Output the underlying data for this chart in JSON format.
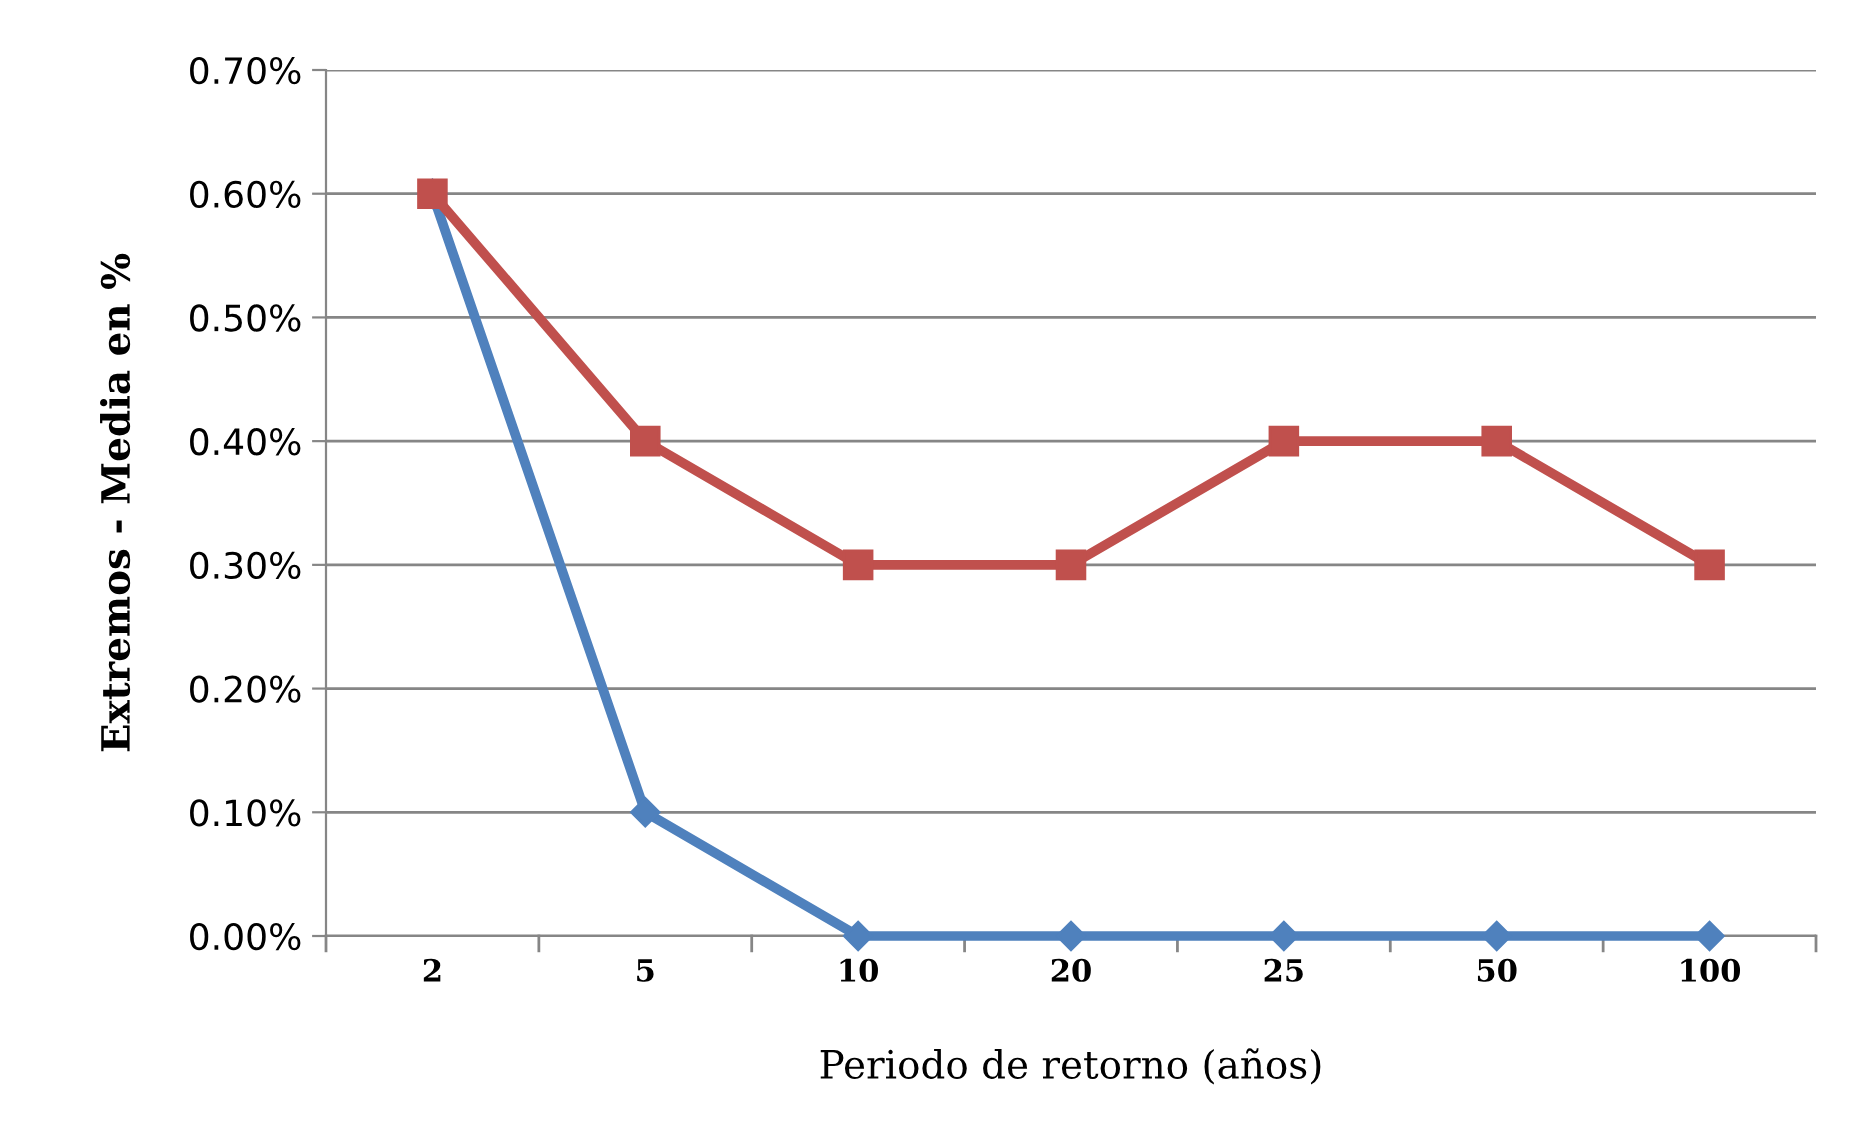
{
  "chart_data": {
    "type": "line",
    "xlabel": "Periodo de retorno (años)",
    "ylabel": "Extremos - Media en %",
    "categories": [
      "2",
      "5",
      "10",
      "20",
      "25",
      "50",
      "100"
    ],
    "series": [
      {
        "color": "#4f81bd",
        "marker": "diamond",
        "values": [
          0.6,
          0.1,
          0,
          0,
          0,
          0,
          0
        ]
      },
      {
        "color": "#c0504d",
        "marker": "square",
        "values": [
          0.6,
          0.4,
          0.3,
          0.3,
          0.4,
          0.4,
          0.3
        ]
      }
    ],
    "ylim": [
      0,
      0.7
    ],
    "yticks": [
      {
        "value": 0,
        "label": "0.00%"
      },
      {
        "value": 0.1,
        "label": "0.10%"
      },
      {
        "value": 0.2,
        "label": "0.20%"
      },
      {
        "value": 0.3,
        "label": "0.30%"
      },
      {
        "value": 0.4,
        "label": "0.40%"
      },
      {
        "value": 0.5,
        "label": "0.50%"
      },
      {
        "value": 0.6,
        "label": "0.60%"
      },
      {
        "value": 0.7,
        "label": "0.70%"
      }
    ],
    "grid": "y",
    "line_style": "solid"
  }
}
